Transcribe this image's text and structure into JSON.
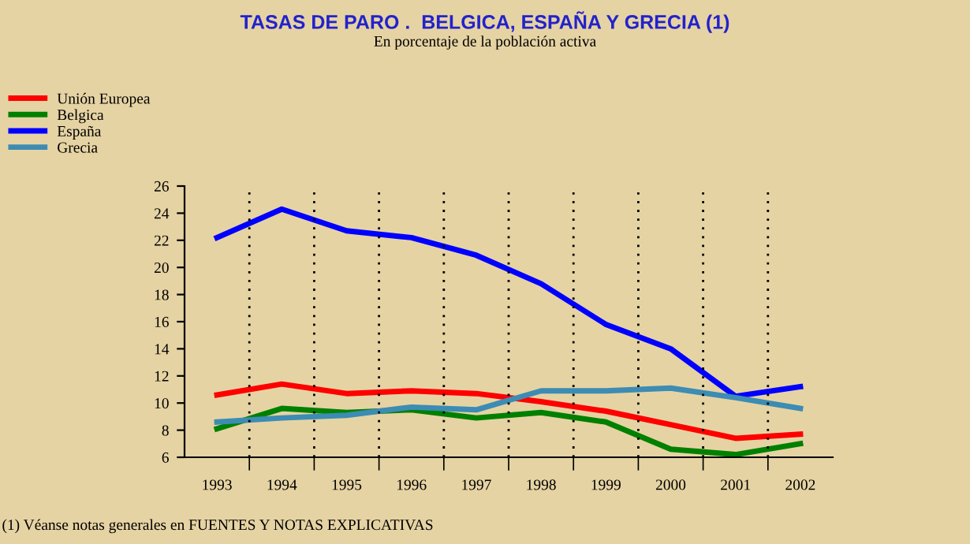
{
  "chart_data": {
    "type": "line",
    "title": "TASAS DE PARO .  BELGICA, ESPAÑA Y GRECIA (1)",
    "subtitle": "En porcentaje de la población activa",
    "categories": [
      "1993",
      "1994",
      "1995",
      "1996",
      "1997",
      "1998",
      "1999",
      "2000",
      "2001",
      "2002"
    ],
    "series": [
      {
        "name": "Unión Europea",
        "color": "#ff0000",
        "values": [
          10.6,
          11.4,
          10.7,
          10.9,
          10.7,
          10.1,
          9.4,
          8.4,
          7.4,
          7.7
        ]
      },
      {
        "name": "Belgica",
        "color": "#008000",
        "values": [
          8.1,
          9.6,
          9.3,
          9.5,
          8.9,
          9.3,
          8.6,
          6.6,
          6.2,
          7.0
        ]
      },
      {
        "name": "España",
        "color": "#0000ff",
        "values": [
          22.2,
          24.3,
          22.7,
          22.2,
          20.9,
          18.8,
          15.8,
          14.0,
          10.5,
          11.2
        ]
      },
      {
        "name": "Grecia",
        "color": "#3c8cb4",
        "values": [
          8.6,
          8.9,
          9.1,
          9.7,
          9.5,
          10.9,
          10.9,
          11.1,
          10.4,
          9.6
        ]
      }
    ],
    "ylim": [
      6,
      26
    ],
    "yticks": [
      6,
      8,
      10,
      12,
      14,
      16,
      18,
      20,
      22,
      24,
      26
    ],
    "grid": "x",
    "legend": "top left",
    "marker": "none",
    "line_style": "solid",
    "annotations": [
      "(1) Véanse notas generales en FUENTES Y NOTAS EXPLICATIVAS"
    ]
  }
}
